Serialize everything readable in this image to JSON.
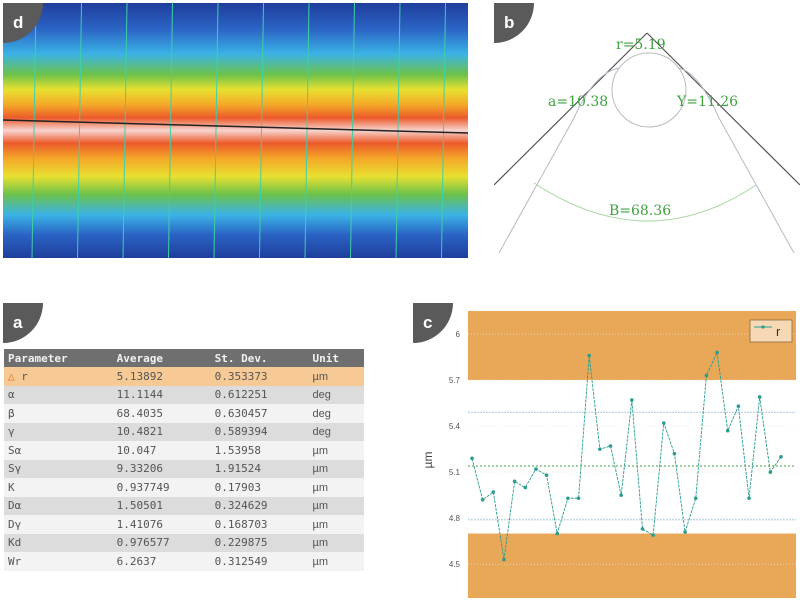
{
  "panels": {
    "d": {
      "label": "d"
    },
    "b": {
      "label": "b",
      "annotations": {
        "r": "r=5.19",
        "alpha": "a=10.38",
        "gamma": "Y=11.26",
        "beta": "B=68.36"
      }
    },
    "a": {
      "label": "a",
      "table": {
        "headers": [
          "Parameter",
          "Average",
          "St. Dev.",
          "Unit"
        ],
        "rows": [
          {
            "param": "r",
            "warn_icon": "△",
            "avg": "5.13892",
            "sd": "0.353373",
            "unit": "µm"
          },
          {
            "param": "α",
            "avg": "11.1144",
            "sd": "0.612251",
            "unit": "deg"
          },
          {
            "param": "β",
            "avg": "68.4035",
            "sd": "0.630457",
            "unit": "deg"
          },
          {
            "param": "γ",
            "avg": "10.4821",
            "sd": "0.589394",
            "unit": "deg"
          },
          {
            "param": "Sα",
            "avg": "10.047",
            "sd": "1.53958",
            "unit": "µm"
          },
          {
            "param": "Sγ",
            "avg": "9.33206",
            "sd": "1.91524",
            "unit": "µm"
          },
          {
            "param": "K",
            "avg": "0.937749",
            "sd": "0.17903",
            "unit": "µm"
          },
          {
            "param": "Dα",
            "avg": "1.50501",
            "sd": "0.324629",
            "unit": "µm"
          },
          {
            "param": "Dγ",
            "avg": "1.41076",
            "sd": "0.168703",
            "unit": "µm"
          },
          {
            "param": "Kd",
            "avg": "0.976577",
            "sd": "0.229875",
            "unit": "µm"
          },
          {
            "param": "Wr",
            "avg": "6.2637",
            "sd": "0.312549",
            "unit": "µm"
          }
        ]
      }
    },
    "c": {
      "label": "c"
    }
  },
  "colors": {
    "band": "#e8a858",
    "series": "#2a9d8f",
    "mean": "#3ea33e",
    "sigma": "#b8d4e4",
    "highlight": "#f7c995"
  },
  "chart_data": {
    "type": "line",
    "title": "",
    "xlabel": "",
    "ylabel": "µm",
    "ylim": [
      4.28,
      6.15
    ],
    "yticks": [
      4.5,
      4.8,
      5.1,
      5.4,
      5.7,
      6
    ],
    "ytick_labels": [
      "4.5",
      "4.8",
      "5.1",
      "5.4",
      "5.7",
      "6"
    ],
    "legend": {
      "entries": [
        "r"
      ],
      "position": "top-right"
    },
    "bands": [
      {
        "from": 5.7,
        "to": 6.15
      },
      {
        "from": 4.28,
        "to": 4.7
      }
    ],
    "mean_line": 5.14,
    "sigma_lines": [
      5.49,
      4.79
    ],
    "series": [
      {
        "name": "r",
        "values": [
          5.19,
          4.92,
          4.97,
          4.53,
          5.04,
          5.0,
          5.12,
          5.08,
          4.7,
          4.93,
          4.93,
          5.86,
          5.25,
          5.27,
          4.95,
          5.57,
          4.73,
          4.69,
          5.42,
          5.22,
          4.71,
          4.93,
          5.73,
          5.88,
          5.37,
          5.53,
          4.93,
          5.59,
          5.1,
          5.2
        ]
      }
    ],
    "grid": false
  }
}
